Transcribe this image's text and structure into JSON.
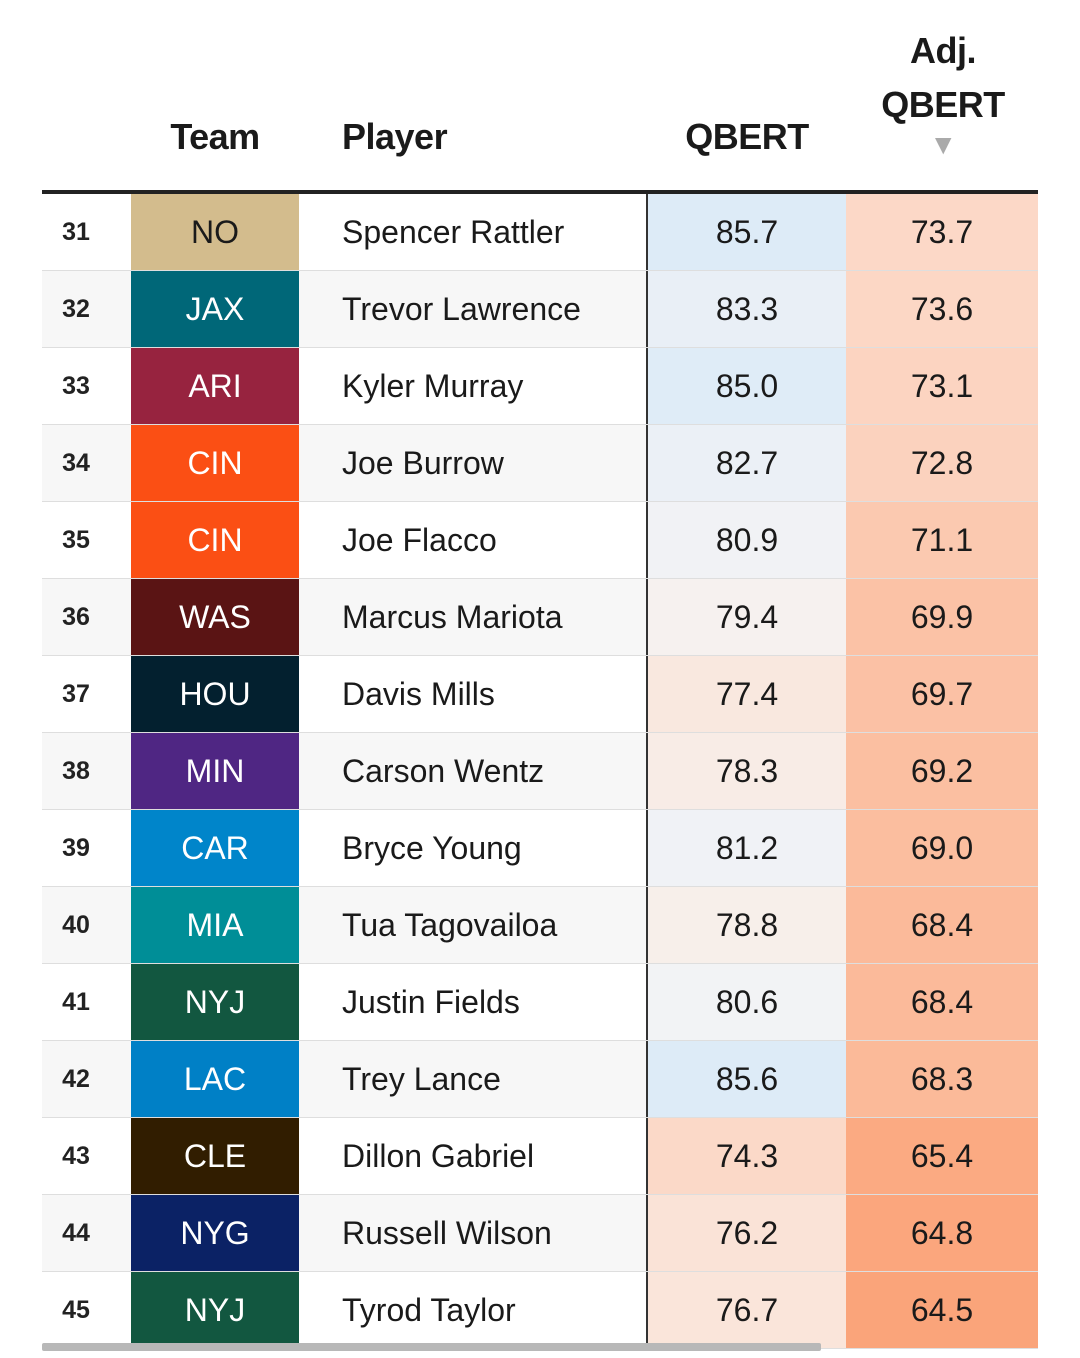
{
  "chart_data": {
    "type": "table",
    "columns": {
      "rank": "",
      "team": "Team",
      "player": "Player",
      "qbert": "QBERT",
      "adj_qbert_line1": "Adj.",
      "adj_qbert_line2": "QBERT"
    },
    "sort_indicator": "▼",
    "rows": [
      {
        "rank": "31",
        "team": "NO",
        "team_color": "#d3bc8d",
        "team_text_color": "#1a1a1a",
        "player": "Spencer Rattler",
        "qbert": "85.7",
        "qbert_bg": "#ddebf7",
        "adj": "73.7",
        "adj_bg": "#fcd8c7"
      },
      {
        "rank": "32",
        "team": "JAX",
        "team_color": "#006778",
        "team_text_color": "#ffffff",
        "player": "Trevor Lawrence",
        "qbert": "83.3",
        "qbert_bg": "#e9eff6",
        "adj": "73.6",
        "adj_bg": "#fcd7c5"
      },
      {
        "rank": "33",
        "team": "ARI",
        "team_color": "#97233f",
        "team_text_color": "#ffffff",
        "player": "Kyler Murray",
        "qbert": "85.0",
        "qbert_bg": "#dfecf7",
        "adj": "73.1",
        "adj_bg": "#fcd4c1"
      },
      {
        "rank": "34",
        "team": "CIN",
        "team_color": "#fb4f14",
        "team_text_color": "#ffffff",
        "player": "Joe Burrow",
        "qbert": "82.7",
        "qbert_bg": "#ebf0f6",
        "adj": "72.8",
        "adj_bg": "#fbd2be"
      },
      {
        "rank": "35",
        "team": "CIN",
        "team_color": "#fb4f14",
        "team_text_color": "#ffffff",
        "player": "Joe Flacco",
        "qbert": "80.9",
        "qbert_bg": "#f1f2f5",
        "adj": "71.1",
        "adj_bg": "#fbc9b0"
      },
      {
        "rank": "36",
        "team": "WAS",
        "team_color": "#5a1414",
        "team_text_color": "#ffffff",
        "player": "Marcus Mariota",
        "qbert": "79.4",
        "qbert_bg": "#f6f1ef",
        "adj": "69.9",
        "adj_bg": "#fbc2a6"
      },
      {
        "rank": "37",
        "team": "HOU",
        "team_color": "#03202f",
        "team_text_color": "#ffffff",
        "player": "Davis Mills",
        "qbert": "77.4",
        "qbert_bg": "#f9e8df",
        "adj": "69.7",
        "adj_bg": "#fbc1a5"
      },
      {
        "rank": "38",
        "team": "MIN",
        "team_color": "#4f2683",
        "team_text_color": "#ffffff",
        "player": "Carson Wentz",
        "qbert": "78.3",
        "qbert_bg": "#f8ece6",
        "adj": "69.2",
        "adj_bg": "#fbbfa1"
      },
      {
        "rank": "39",
        "team": "CAR",
        "team_color": "#0085ca",
        "team_text_color": "#ffffff",
        "player": "Bryce Young",
        "qbert": "81.2",
        "qbert_bg": "#f0f2f6",
        "adj": "69.0",
        "adj_bg": "#fbbe9f"
      },
      {
        "rank": "40",
        "team": "MIA",
        "team_color": "#008e97",
        "team_text_color": "#ffffff",
        "player": "Tua Tagovailoa",
        "qbert": "78.8",
        "qbert_bg": "#f7efea",
        "adj": "68.4",
        "adj_bg": "#fbba9a"
      },
      {
        "rank": "41",
        "team": "NYJ",
        "team_color": "#125740",
        "team_text_color": "#ffffff",
        "player": "Justin Fields",
        "qbert": "80.6",
        "qbert_bg": "#f2f3f5",
        "adj": "68.4",
        "adj_bg": "#fbba9a"
      },
      {
        "rank": "42",
        "team": "LAC",
        "team_color": "#0080c6",
        "team_text_color": "#ffffff",
        "player": "Trey Lance",
        "qbert": "85.6",
        "qbert_bg": "#ddebf7",
        "adj": "68.3",
        "adj_bg": "#fbba99"
      },
      {
        "rank": "43",
        "team": "CLE",
        "team_color": "#311d00",
        "team_text_color": "#ffffff",
        "player": "Dillon Gabriel",
        "qbert": "74.3",
        "qbert_bg": "#fbd9c8",
        "adj": "65.4",
        "adj_bg": "#fbaa82"
      },
      {
        "rank": "44",
        "team": "NYG",
        "team_color": "#0b2265",
        "team_text_color": "#ffffff",
        "player": "Russell Wilson",
        "qbert": "76.2",
        "qbert_bg": "#fae3d7",
        "adj": "64.8",
        "adj_bg": "#fba67d"
      },
      {
        "rank": "45",
        "team": "NYJ",
        "team_color": "#125740",
        "team_text_color": "#ffffff",
        "player": "Tyrod Taylor",
        "qbert": "76.7",
        "qbert_bg": "#fae5da",
        "adj": "64.5",
        "adj_bg": "#faa47a"
      }
    ]
  }
}
